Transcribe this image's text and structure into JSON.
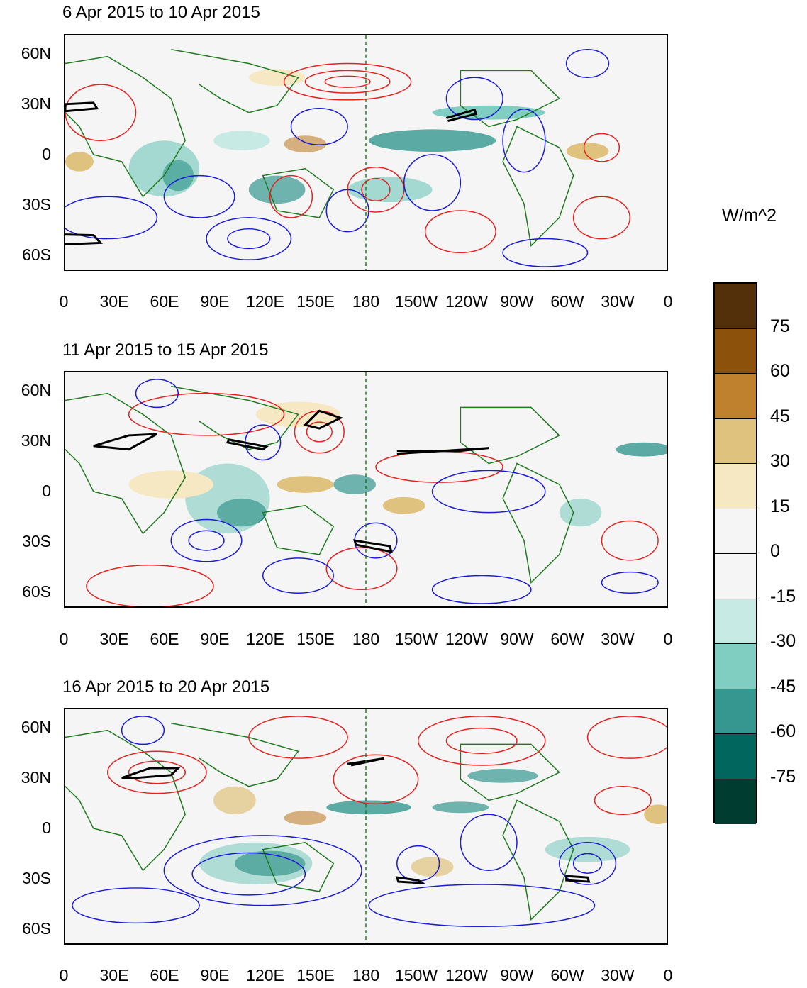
{
  "panels": [
    {
      "title": "6 Apr 2015 to 10 Apr 2015"
    },
    {
      "title": "11 Apr 2015 to 15 Apr 2015"
    },
    {
      "title": "16 Apr 2015 to 20 Apr 2015"
    }
  ],
  "lat_labels": [
    "60N",
    "30N",
    "0",
    "30S",
    "60S"
  ],
  "lon_labels": [
    "0",
    "30E",
    "60E",
    "90E",
    "120E",
    "150E",
    "180",
    "150W",
    "120W",
    "90W",
    "60W",
    "30W",
    "0"
  ],
  "colorbar": {
    "units": "W/m^2",
    "labels": [
      "75",
      "60",
      "45",
      "30",
      "15",
      "0",
      "-15",
      "-30",
      "-45",
      "-60",
      "-75"
    ],
    "colors": [
      "#54300a",
      "#8c510a",
      "#bf812d",
      "#dfc27d",
      "#f6e8c3",
      "#f5f5f5",
      "#f5f5f5",
      "#c7eae5",
      "#80cdc1",
      "#35978f",
      "#01665e",
      "#003c30"
    ]
  },
  "colors": {
    "land_outline": "#1f7a1f",
    "positive_contour": "#e8201e",
    "negative_contour": "#1a1adb",
    "zero_contour": "#000000",
    "dateline": "#1f7a1f"
  }
}
